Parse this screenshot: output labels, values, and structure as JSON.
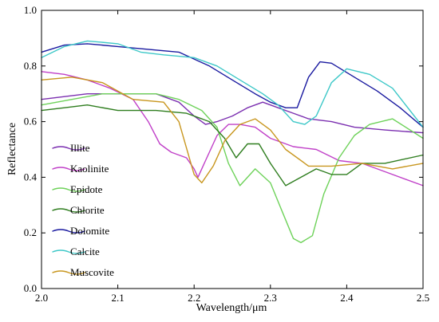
{
  "chart_data": {
    "type": "line",
    "xlabel": "Wavelength/μm",
    "ylabel": "Reflectance",
    "xlim": [
      2.0,
      2.5
    ],
    "ylim": [
      0.0,
      1.0
    ],
    "xticks": [
      "2.0",
      "2.1",
      "2.2",
      "2.3",
      "2.4",
      "2.5"
    ],
    "yticks": [
      "0.0",
      "0.2",
      "0.4",
      "0.6",
      "0.8",
      "1.0"
    ],
    "legend_position": "left-middle",
    "grid": false,
    "series": [
      {
        "name": "Illite",
        "color": "#7b2fb0",
        "points": [
          [
            2.0,
            0.68
          ],
          [
            2.03,
            0.69
          ],
          [
            2.06,
            0.7
          ],
          [
            2.1,
            0.7
          ],
          [
            2.15,
            0.7
          ],
          [
            2.18,
            0.67
          ],
          [
            2.2,
            0.62
          ],
          [
            2.215,
            0.59
          ],
          [
            2.23,
            0.6
          ],
          [
            2.25,
            0.62
          ],
          [
            2.27,
            0.65
          ],
          [
            2.29,
            0.67
          ],
          [
            2.31,
            0.65
          ],
          [
            2.33,
            0.63
          ],
          [
            2.35,
            0.61
          ],
          [
            2.38,
            0.6
          ],
          [
            2.41,
            0.58
          ],
          [
            2.45,
            0.57
          ],
          [
            2.5,
            0.56
          ]
        ]
      },
      {
        "name": "Kaolinite",
        "color": "#c040c8",
        "points": [
          [
            2.0,
            0.78
          ],
          [
            2.03,
            0.77
          ],
          [
            2.06,
            0.75
          ],
          [
            2.09,
            0.72
          ],
          [
            2.12,
            0.68
          ],
          [
            2.14,
            0.6
          ],
          [
            2.155,
            0.52
          ],
          [
            2.17,
            0.49
          ],
          [
            2.19,
            0.47
          ],
          [
            2.2,
            0.43
          ],
          [
            2.205,
            0.4
          ],
          [
            2.215,
            0.46
          ],
          [
            2.23,
            0.55
          ],
          [
            2.245,
            0.59
          ],
          [
            2.26,
            0.59
          ],
          [
            2.28,
            0.58
          ],
          [
            2.3,
            0.54
          ],
          [
            2.33,
            0.51
          ],
          [
            2.36,
            0.5
          ],
          [
            2.39,
            0.46
          ],
          [
            2.42,
            0.45
          ],
          [
            2.45,
            0.42
          ],
          [
            2.5,
            0.37
          ]
        ]
      },
      {
        "name": "Epidote",
        "color": "#6ed25a",
        "points": [
          [
            2.0,
            0.66
          ],
          [
            2.04,
            0.68
          ],
          [
            2.08,
            0.7
          ],
          [
            2.12,
            0.7
          ],
          [
            2.15,
            0.7
          ],
          [
            2.18,
            0.68
          ],
          [
            2.21,
            0.64
          ],
          [
            2.23,
            0.58
          ],
          [
            2.245,
            0.45
          ],
          [
            2.26,
            0.37
          ],
          [
            2.28,
            0.43
          ],
          [
            2.3,
            0.38
          ],
          [
            2.315,
            0.28
          ],
          [
            2.33,
            0.18
          ],
          [
            2.34,
            0.165
          ],
          [
            2.355,
            0.19
          ],
          [
            2.37,
            0.34
          ],
          [
            2.39,
            0.47
          ],
          [
            2.41,
            0.55
          ],
          [
            2.43,
            0.59
          ],
          [
            2.46,
            0.61
          ],
          [
            2.5,
            0.54
          ]
        ]
      },
      {
        "name": "Chlorite",
        "color": "#2e7d1e",
        "points": [
          [
            2.0,
            0.64
          ],
          [
            2.03,
            0.65
          ],
          [
            2.06,
            0.66
          ],
          [
            2.1,
            0.64
          ],
          [
            2.15,
            0.64
          ],
          [
            2.19,
            0.63
          ],
          [
            2.22,
            0.6
          ],
          [
            2.24,
            0.54
          ],
          [
            2.255,
            0.47
          ],
          [
            2.27,
            0.52
          ],
          [
            2.285,
            0.52
          ],
          [
            2.3,
            0.45
          ],
          [
            2.32,
            0.37
          ],
          [
            2.34,
            0.4
          ],
          [
            2.36,
            0.43
          ],
          [
            2.38,
            0.41
          ],
          [
            2.4,
            0.41
          ],
          [
            2.42,
            0.45
          ],
          [
            2.45,
            0.45
          ],
          [
            2.5,
            0.48
          ]
        ]
      },
      {
        "name": "Dolomite",
        "color": "#1a1aa0",
        "points": [
          [
            2.0,
            0.85
          ],
          [
            2.03,
            0.875
          ],
          [
            2.06,
            0.88
          ],
          [
            2.1,
            0.87
          ],
          [
            2.14,
            0.86
          ],
          [
            2.18,
            0.85
          ],
          [
            2.22,
            0.8
          ],
          [
            2.25,
            0.75
          ],
          [
            2.28,
            0.7
          ],
          [
            2.3,
            0.67
          ],
          [
            2.32,
            0.65
          ],
          [
            2.335,
            0.65
          ],
          [
            2.35,
            0.76
          ],
          [
            2.365,
            0.815
          ],
          [
            2.38,
            0.81
          ],
          [
            2.41,
            0.76
          ],
          [
            2.44,
            0.71
          ],
          [
            2.47,
            0.65
          ],
          [
            2.5,
            0.58
          ]
        ]
      },
      {
        "name": "Calcite",
        "color": "#3ec8c8",
        "points": [
          [
            2.0,
            0.83
          ],
          [
            2.03,
            0.87
          ],
          [
            2.06,
            0.89
          ],
          [
            2.1,
            0.88
          ],
          [
            2.13,
            0.85
          ],
          [
            2.16,
            0.84
          ],
          [
            2.2,
            0.83
          ],
          [
            2.23,
            0.8
          ],
          [
            2.26,
            0.75
          ],
          [
            2.29,
            0.7
          ],
          [
            2.31,
            0.66
          ],
          [
            2.33,
            0.6
          ],
          [
            2.345,
            0.59
          ],
          [
            2.36,
            0.62
          ],
          [
            2.38,
            0.74
          ],
          [
            2.4,
            0.79
          ],
          [
            2.43,
            0.77
          ],
          [
            2.46,
            0.72
          ],
          [
            2.5,
            0.58
          ]
        ]
      },
      {
        "name": "Muscovite",
        "color": "#c8961e",
        "points": [
          [
            2.0,
            0.75
          ],
          [
            2.04,
            0.76
          ],
          [
            2.08,
            0.74
          ],
          [
            2.12,
            0.68
          ],
          [
            2.16,
            0.67
          ],
          [
            2.18,
            0.6
          ],
          [
            2.2,
            0.41
          ],
          [
            2.21,
            0.38
          ],
          [
            2.225,
            0.44
          ],
          [
            2.24,
            0.53
          ],
          [
            2.26,
            0.59
          ],
          [
            2.28,
            0.61
          ],
          [
            2.3,
            0.57
          ],
          [
            2.32,
            0.5
          ],
          [
            2.35,
            0.44
          ],
          [
            2.38,
            0.44
          ],
          [
            2.42,
            0.45
          ],
          [
            2.46,
            0.43
          ],
          [
            2.5,
            0.45
          ]
        ]
      }
    ]
  }
}
